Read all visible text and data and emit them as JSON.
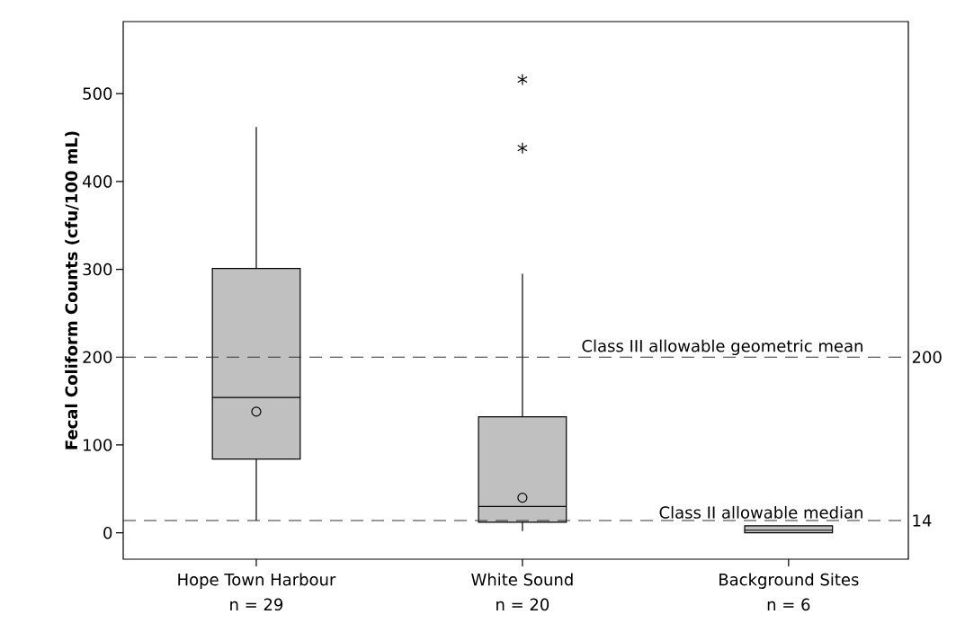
{
  "chart_data": {
    "type": "box",
    "categories": [
      "Hope Town Harbour",
      "White Sound",
      "Background Sites"
    ],
    "annotations": [
      "n = 29",
      "n = 20",
      "n = 6"
    ],
    "ylabel": "Fecal Coliform Counts (cfu/100 mL)",
    "ylim": [
      -30,
      582
    ],
    "yticks": [
      0,
      100,
      200,
      300,
      400,
      500
    ],
    "y2lim": [
      -30,
      582
    ],
    "y2ticks": [
      14,
      200
    ],
    "color": "#c0c0c0",
    "boxes": [
      {
        "low": 14,
        "q1": 84,
        "median": 154,
        "q3": 301,
        "high": 462,
        "mean": 138
      },
      {
        "low": 2,
        "q1": 12,
        "median": 30,
        "q3": 132,
        "high": 295,
        "mean": 40,
        "outliers": [
          516,
          438
        ]
      },
      {
        "low": 0,
        "q1": 0,
        "median": 3,
        "q3": 8,
        "high": 8
      }
    ],
    "ref_lines": [
      {
        "axis": "y",
        "value": 200,
        "label": "Class III allowable geometric mean",
        "line_style": "dashed"
      },
      {
        "axis": "y",
        "value": 14,
        "label": "Class II allowable median",
        "line_style": "dashed"
      }
    ]
  }
}
